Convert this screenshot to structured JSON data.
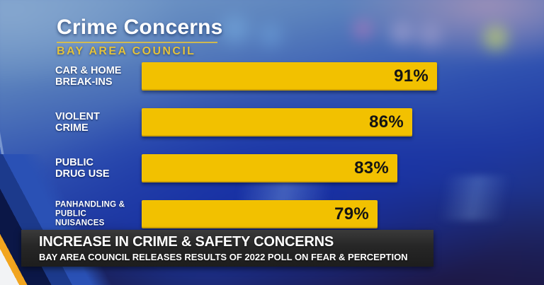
{
  "colors": {
    "bar": "#f2c100",
    "accent_gold": "#e3c23d",
    "banner_background": "#262626",
    "text_light": "#ffffff",
    "text_dark": "#141414",
    "backdrop_blue": "#1f3aa2"
  },
  "header": {
    "title": "Crime Concerns",
    "subtitle": "BAY AREA COUNCIL"
  },
  "chart_data": {
    "type": "bar",
    "orientation": "horizontal",
    "title": "Crime Concerns",
    "subtitle": "BAY AREA COUNCIL",
    "categories": [
      "CAR & HOME BREAK-INS",
      "VIOLENT CRIME",
      "PUBLIC DRUG USE",
      "PANHANDLING & PUBLIC NUISANCES"
    ],
    "categories_lines": [
      [
        "CAR & HOME",
        "BREAK-INS"
      ],
      [
        "VIOLENT",
        "CRIME"
      ],
      [
        "PUBLIC",
        "DRUG USE"
      ],
      [
        "PANHANDLING &",
        "PUBLIC NUISANCES"
      ]
    ],
    "values": [
      91,
      86,
      83,
      79
    ],
    "value_labels": [
      "91%",
      "86%",
      "83%",
      "79%"
    ],
    "unit": "%",
    "xlim": [
      0,
      100
    ],
    "grid": false,
    "legend": false,
    "bar_color": "#f2c100",
    "value_label_position": "inside-right"
  },
  "lower_third": {
    "headline": "INCREASE IN CRIME & SAFETY CONCERNS",
    "subheadline": "BAY AREA COUNCIL RELEASES RESULTS OF 2022 POLL ON FEAR & PERCEPTION"
  }
}
